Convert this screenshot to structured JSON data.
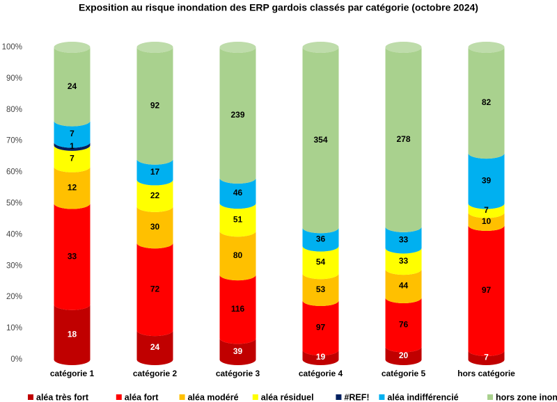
{
  "chart_data": {
    "type": "stacked_cylinder",
    "stacking": "percent",
    "title": "Exposition au risque inondation des ERP gardois classés par catégorie (octobre 2024)",
    "categories": [
      "catégorie 1",
      "catégorie 2",
      "catégorie 3",
      "catégorie 4",
      "catégorie 5",
      "hors catégorie"
    ],
    "series": [
      {
        "name": "aléa très fort",
        "color": "#c00000",
        "values": [
          18,
          24,
          39,
          19,
          20,
          7
        ]
      },
      {
        "name": "aléa fort",
        "color": "#ff0000",
        "values": [
          33,
          72,
          116,
          97,
          76,
          97
        ]
      },
      {
        "name": "aléa modéré",
        "color": "#ffc000",
        "values": [
          12,
          30,
          80,
          53,
          44,
          10
        ]
      },
      {
        "name": "aléa résiduel",
        "color": "#ffff00",
        "values": [
          7,
          22,
          51,
          54,
          33,
          7
        ]
      },
      {
        "name": "#REF!",
        "color": "#002060",
        "values": [
          1,
          null,
          null,
          null,
          null,
          null
        ]
      },
      {
        "name": "aléa indifférencié",
        "color": "#00b0f0",
        "values": [
          7,
          17,
          46,
          36,
          33,
          39
        ]
      },
      {
        "name": "hors zone inondable",
        "color": "#a9d18e",
        "values": [
          24,
          92,
          239,
          354,
          278,
          82
        ]
      }
    ],
    "ylim": [
      0,
      100
    ],
    "yticks": [
      {
        "value": 0,
        "label": "0%"
      },
      {
        "value": 10,
        "label": "10%"
      },
      {
        "value": 20,
        "label": "20%"
      },
      {
        "value": 30,
        "label": "30%"
      },
      {
        "value": 40,
        "label": "40%"
      },
      {
        "value": 50,
        "label": "50%"
      },
      {
        "value": 60,
        "label": "60%"
      },
      {
        "value": 70,
        "label": "70%"
      },
      {
        "value": 80,
        "label": "80%"
      },
      {
        "value": 90,
        "label": "90%"
      },
      {
        "value": 100,
        "label": "100%"
      }
    ],
    "grid": false,
    "legend": "bottom"
  }
}
